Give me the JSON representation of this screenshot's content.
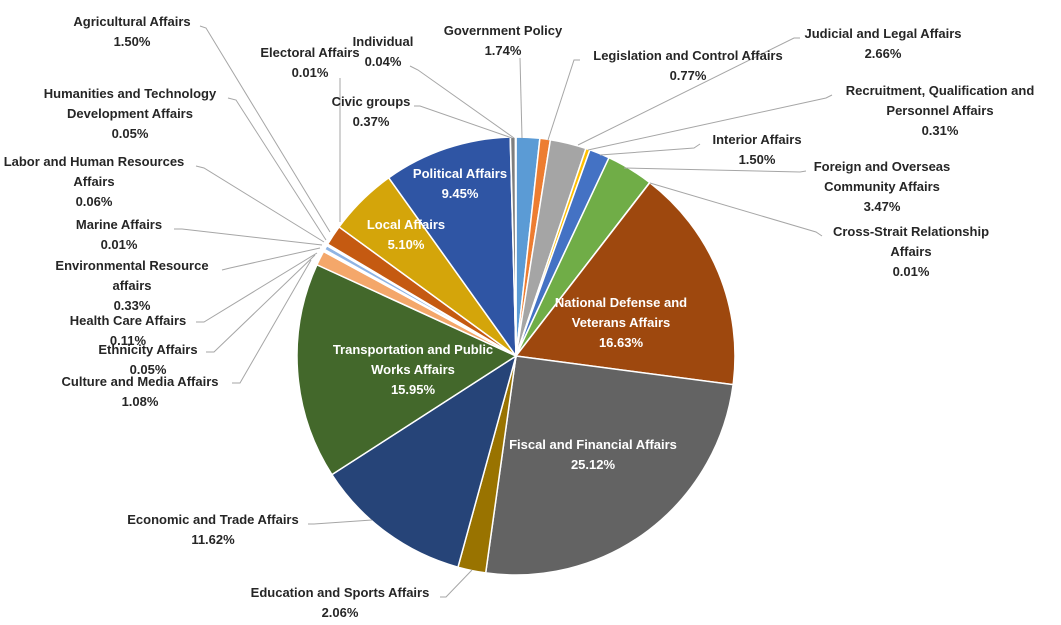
{
  "chart_data": {
    "type": "pie",
    "title": "",
    "slices": [
      {
        "label": "Government Policy",
        "value": 1.74,
        "display": "1.74%",
        "color": "#5b9bd5"
      },
      {
        "label": "Legislation and Control Affairs",
        "value": 0.77,
        "display": "0.77%",
        "color": "#ed7d31"
      },
      {
        "label": "Judicial and Legal Affairs",
        "value": 2.66,
        "display": "2.66%",
        "color": "#a5a5a5"
      },
      {
        "label": "Recruitment, Qualification and Personnel Affairs",
        "value": 0.31,
        "display": "0.31%",
        "color": "#ffc000"
      },
      {
        "label": "Interior Affairs",
        "value": 1.5,
        "display": "1.50%",
        "color": "#4472c4"
      },
      {
        "label": "Foreign and Overseas Community Affairs",
        "value": 3.47,
        "display": "3.47%",
        "color": "#70ad47"
      },
      {
        "label": "Cross-Strait Relationship Affairs",
        "value": 0.01,
        "display": "0.01%",
        "color": "#255e91"
      },
      {
        "label": "National Defense and Veterans Affairs",
        "value": 16.63,
        "display": "16.63%",
        "color": "#9e480e"
      },
      {
        "label": "Fiscal and Financial Affairs",
        "value": 25.12,
        "display": "25.12%",
        "color": "#636363"
      },
      {
        "label": "Education and Sports Affairs",
        "value": 2.06,
        "display": "2.06%",
        "color": "#997300"
      },
      {
        "label": "Economic and Trade Affairs",
        "value": 11.62,
        "display": "11.62%",
        "color": "#264478"
      },
      {
        "label": "Transportation and Public Works Affairs",
        "value": 15.95,
        "display": "15.95%",
        "color": "#43682b"
      },
      {
        "label": "Culture and Media Affairs",
        "value": 1.08,
        "display": "1.08%",
        "color": "#f4a76a"
      },
      {
        "label": "Ethnicity Affairs",
        "value": 0.05,
        "display": "0.05%",
        "color": "#c9c9c9"
      },
      {
        "label": "Health Care Affairs",
        "value": 0.11,
        "display": "0.11%",
        "color": "#ffd966"
      },
      {
        "label": "Environmental Resource affairs",
        "value": 0.33,
        "display": "0.33%",
        "color": "#8fb4e3"
      },
      {
        "label": "Marine Affairs",
        "value": 0.01,
        "display": "0.01%",
        "color": "#a9d18e"
      },
      {
        "label": "Labor and Human Resources Affairs",
        "value": 0.06,
        "display": "0.06%",
        "color": "#698ed0"
      },
      {
        "label": "Humanities and Technology Development Affairs",
        "value": 0.05,
        "display": "0.05%",
        "color": "#f1975a"
      },
      {
        "label": "Agricultural Affairs",
        "value": 1.5,
        "display": "1.50%",
        "color": "#c55a11"
      },
      {
        "label": "Local Affairs",
        "value": 5.1,
        "display": "5.10%",
        "color": "#d4a50a"
      },
      {
        "label": "Political Affairs",
        "value": 9.45,
        "display": "9.45%",
        "color": "#2f55a4"
      },
      {
        "label": "Electoral Affairs",
        "value": 0.01,
        "display": "0.01%",
        "color": "#a5a5a5"
      },
      {
        "label": "Civic groups",
        "value": 0.37,
        "display": "0.37%",
        "color": "#7f7f7f"
      },
      {
        "label": "Individual",
        "value": 0.04,
        "display": "0.04%",
        "color": "#548235"
      }
    ]
  }
}
